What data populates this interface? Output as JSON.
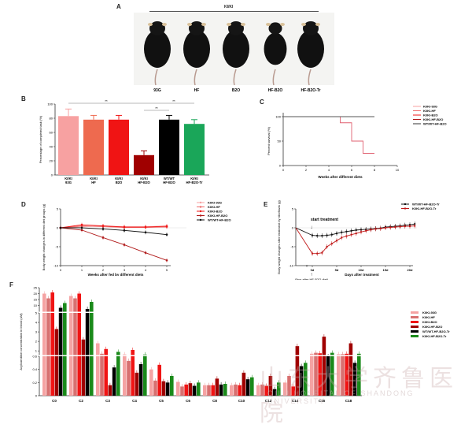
{
  "panels": {
    "A": {
      "label": "A",
      "header": "KI/KI",
      "mice": [
        "93G",
        "HF",
        "B2O",
        "HF-B2O",
        "HF-B2O-Tr"
      ]
    },
    "B": {
      "label": "B"
    },
    "C": {
      "label": "C"
    },
    "D": {
      "label": "D"
    },
    "E": {
      "label": "E",
      "annotation": "start treatment",
      "sub_note": "(5ws after HF-B2O diet)"
    },
    "F": {
      "label": "F"
    }
  },
  "watermark": {
    "text": "山东大学齐鲁医院",
    "sub": "QILU HOSPITAL OF SHANDONG UNIVERSITY"
  },
  "chart_data": [
    {
      "id": "B",
      "type": "bar",
      "title": "",
      "ylabel": "Percentage of completed task (%)",
      "xlabel": "",
      "ylim": [
        0,
        100
      ],
      "yticks": [
        0,
        20,
        40,
        60,
        80,
        100
      ],
      "categories": [
        "KI/KI 93G",
        "KI/KI HF",
        "KI/KI B2O",
        "KI/KI HF-B2O",
        "WT/WT HF-B2O",
        "KI/KI HF-B2O-Tr"
      ],
      "values": [
        83,
        78,
        78,
        28,
        78,
        72
      ],
      "errors": [
        10,
        6,
        6,
        6,
        6,
        6
      ],
      "colors": [
        "#f7a1a1",
        "#ee6a4f",
        "#f01414",
        "#a00000",
        "#000000",
        "#1aa659"
      ],
      "significance": [
        {
          "from": 0,
          "to": 5,
          "label": "**"
        },
        {
          "from": 3,
          "to": 4,
          "label": "**"
        },
        {
          "from": 3,
          "to": 5,
          "label": "**"
        }
      ]
    },
    {
      "id": "C",
      "type": "line",
      "title": "",
      "xlabel": "Weeks after different diets",
      "ylabel": "Percent survival (%)",
      "xlim": [
        0,
        10
      ],
      "ylim": [
        0,
        100
      ],
      "xticks": [
        0,
        2,
        4,
        6,
        8,
        10
      ],
      "yticks": [
        0,
        50,
        100
      ],
      "legend": [
        "KI/KI-93G",
        "KI/KI-HF",
        "KI/KI-B2O",
        "KI/KI-HF-B2O",
        "WT/WT-HF-B2O"
      ],
      "series": [
        {
          "name": "KI/KI-HF-B2O",
          "color": "#e06070",
          "step": true,
          "x": [
            0,
            5,
            5,
            6,
            6,
            7,
            7,
            8
          ],
          "y": [
            100,
            100,
            87.5,
            87.5,
            50,
            50,
            25,
            25
          ]
        },
        {
          "name": "Others",
          "color": "#555555",
          "x": [
            0,
            8
          ],
          "y": [
            100,
            100
          ]
        }
      ]
    },
    {
      "id": "D",
      "type": "line",
      "title": "",
      "xlabel": "Weeks after fed by different diets",
      "ylabel": "Body weight changes in different diet groups (g)",
      "xlim": [
        0,
        5
      ],
      "ylim": [
        -10,
        5
      ],
      "xticks": [
        0,
        1,
        2,
        3,
        4,
        5
      ],
      "yticks": [
        -10,
        -5,
        0,
        5
      ],
      "x": [
        0,
        1,
        2,
        3,
        4,
        5
      ],
      "legend": [
        "KI/KI-93G",
        "KI/KI-HF",
        "KI/KI-B2O",
        "KI/KI-HF-B2O",
        "WT/WT-HF-B2O"
      ],
      "series": [
        {
          "name": "KI/KI-93G",
          "color": "#f7a1a1",
          "values": [
            0,
            0.3,
            0.5,
            0.3,
            0.3,
            0.5
          ]
        },
        {
          "name": "KI/KI-HF",
          "color": "#ee6a6a",
          "values": [
            0,
            0.5,
            0.3,
            0.1,
            0.1,
            0.2
          ]
        },
        {
          "name": "KI/KI-B2O",
          "color": "#f01414",
          "values": [
            0,
            0.8,
            0.5,
            0.2,
            0.2,
            0.4
          ]
        },
        {
          "name": "KI/KI-HF-B2O",
          "color": "#b01818",
          "values": [
            0,
            -0.6,
            -2.6,
            -4.5,
            -6.6,
            -8.6
          ]
        },
        {
          "name": "WT/WT-HF-B2O",
          "color": "#111111",
          "values": [
            0,
            0,
            -0.3,
            -0.7,
            -1.2,
            -1.8
          ]
        }
      ]
    },
    {
      "id": "E",
      "type": "line",
      "title": "",
      "xlabel": "Days after treatment",
      "ylabel": "Body weight changes after treatment by riboflavin (g)",
      "ylim": [
        -10,
        5
      ],
      "xticks": [
        "0d",
        "5d",
        "10d",
        "15d",
        "20d"
      ],
      "yticks": [
        -10,
        -5,
        0,
        5
      ],
      "legend": [
        "WT/WT-HF-B2O-Tr",
        "KI/KI-HF-B2O-Tr"
      ],
      "x": [
        0,
        1,
        2,
        3,
        4,
        5,
        6,
        7,
        8,
        9,
        10,
        11,
        12,
        13,
        14,
        15,
        16,
        17,
        18,
        19,
        20,
        21
      ],
      "series": [
        {
          "name": "WT/WT-HF-B2O-Tr",
          "color": "#111111",
          "values": [
            -2,
            -2.1,
            -2.1,
            -2,
            -1.8,
            -1.5,
            -1.2,
            -1,
            -0.8,
            -0.6,
            -0.5,
            -0.4,
            -0.3,
            -0.2,
            -0.1,
            0.2,
            0.3,
            0.4,
            0.5,
            0.7,
            0.8,
            1.0
          ]
        },
        {
          "name": "KI/KI-HF-B2O-Tr",
          "color": "#c01818",
          "values": [
            -6.8,
            -6.8,
            -6.6,
            -5,
            -4.2,
            -3.4,
            -2.6,
            -2.2,
            -1.8,
            -1.5,
            -1.1,
            -0.8,
            -0.5,
            -0.3,
            -0.2,
            0,
            0.1,
            0.2,
            0.3,
            0.4,
            0.4,
            0.5
          ]
        }
      ],
      "pre_point": {
        "value": 0
      }
    },
    {
      "id": "F",
      "type": "bar",
      "title": "",
      "ylabel": "Acylcarnitine concentration in blood (uM)",
      "xlabel": "",
      "categories": [
        "C0",
        "C2",
        "C3",
        "C4",
        "C5",
        "C6",
        "C8",
        "C10",
        "C12",
        "C14",
        "C16",
        "C18"
      ],
      "axis_segments": [
        {
          "range": [
            0,
            0.6
          ],
          "ticks": [
            0.0,
            0.2,
            0.4,
            0.6
          ]
        },
        {
          "range": [
            0.6,
            5
          ],
          "ticks": [
            1,
            2,
            3,
            4,
            5
          ]
        },
        {
          "range": [
            5,
            25
          ],
          "ticks": [
            10,
            15,
            20,
            25
          ]
        }
      ],
      "legend": [
        "KI/KI-93G",
        "KI/KI-HF",
        "KI/KI-B2O",
        "KI/KI-HF-B2O",
        "WT/WT-HF-B2O-Tr",
        "KI/KI-HF-B2O-Tr"
      ],
      "series_colors": [
        "#f5a3a3",
        "#d87070",
        "#f01414",
        "#a00000",
        "#000000",
        "#1a8a1a"
      ],
      "series": [
        {
          "name": "KI/KI-93G",
          "values": [
            20,
            18,
            1.8,
            0.63,
            0.4,
            0.21,
            0.16,
            0.16,
            0.16,
            0.2,
            0.7,
            0.65
          ]
        },
        {
          "name": "KI/KI-HF",
          "values": [
            16,
            16,
            0.7,
            0.53,
            0.23,
            0.14,
            0.16,
            0.17,
            0.17,
            0.3,
            0.8,
            0.65
          ]
        },
        {
          "name": "KI/KI-B2O",
          "values": [
            21,
            20,
            1.2,
            1.1,
            0.47,
            0.17,
            0.16,
            0.16,
            0.15,
            0.14,
            0.75,
            0.7
          ]
        },
        {
          "name": "KI/KI-HF-B2O",
          "values": [
            3.3,
            2.2,
            0.16,
            0.35,
            0.22,
            0.19,
            0.26,
            0.35,
            0.3,
            1.5,
            2.5,
            1.8
          ]
        },
        {
          "name": "WT/WT-HF-B2O-Tr",
          "values": [
            8,
            7,
            0.43,
            0.48,
            0.2,
            0.15,
            0.17,
            0.25,
            0.1,
            0.45,
            0.6,
            0.5
          ]
        },
        {
          "name": "KI/KI-HF-B2O-Tr",
          "values": [
            12,
            13,
            0.9,
            0.62,
            0.3,
            0.2,
            0.18,
            0.28,
            0.2,
            0.5,
            0.8,
            0.7
          ]
        }
      ],
      "significance_labels": [
        "**",
        "*"
      ]
    }
  ]
}
